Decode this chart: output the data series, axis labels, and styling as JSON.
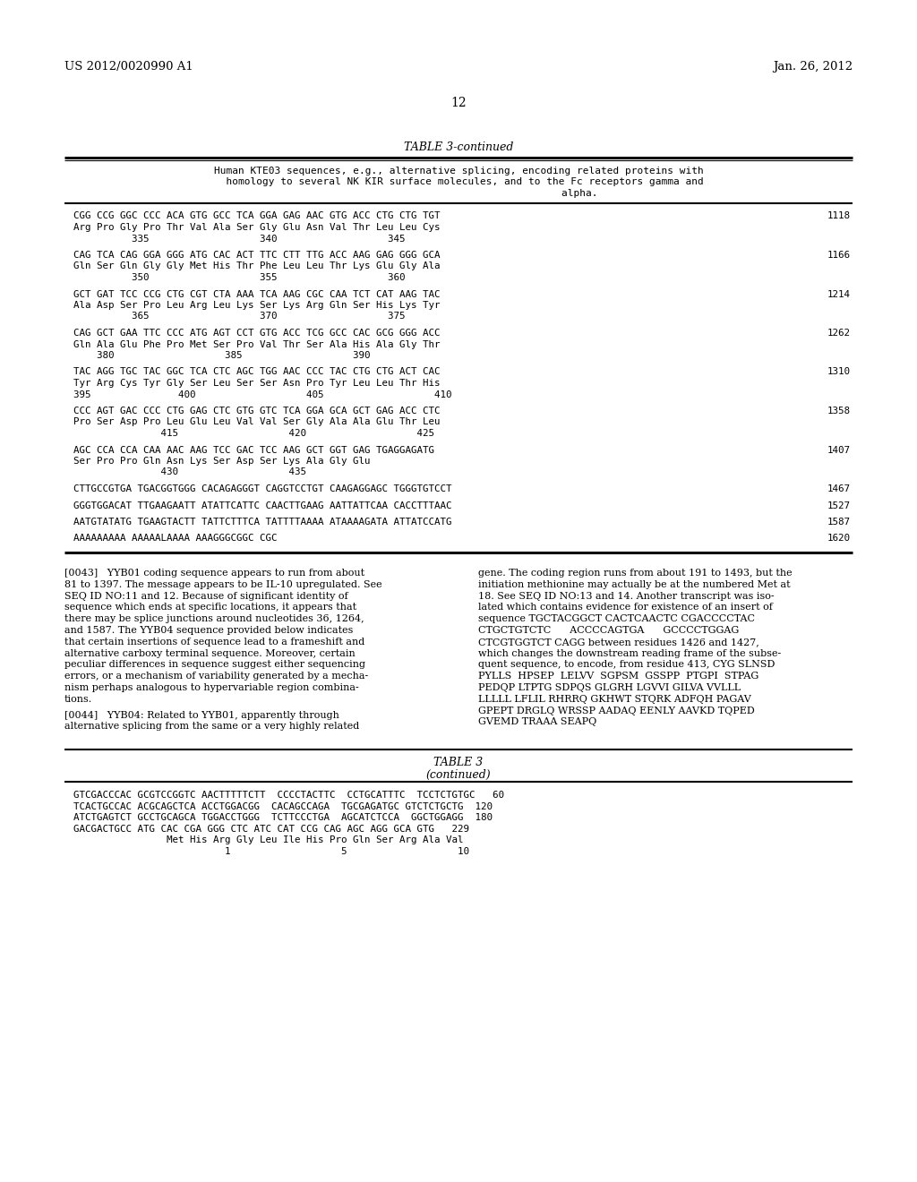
{
  "background_color": "#ffffff",
  "header_left": "US 2012/0020990 A1",
  "header_right": "Jan. 26, 2012",
  "page_number": "12",
  "table_title": "TABLE 3-continued",
  "table_description_lines": [
    "Human KTE03 sequences, e.g., alternative splicing, encoding related proteins with",
    "  homology to several NK KIR surface molecules, and to the Fc receptors gamma and",
    "                                        alpha."
  ],
  "table_rows": [
    {
      "dna": "CGG CCG GGC CCC ACA GTG GCC TCA GGA GAG AAC GTG ACC CTG CTG TGT",
      "aa": "Arg Pro Gly Pro Thr Val Ala Ser Gly Glu Asn Val Thr Leu Leu Cys",
      "nums": "          335                   340                   345",
      "pos": "1118"
    },
    {
      "dna": "CAG TCA CAG GGA GGG ATG CAC ACT TTC CTT TTG ACC AAG GAG GGG GCA",
      "aa": "Gln Ser Gln Gly Gly Met His Thr Phe Leu Leu Thr Lys Glu Gly Ala",
      "nums": "          350                   355                   360",
      "pos": "1166"
    },
    {
      "dna": "GCT GAT TCC CCG CTG CGT CTA AAA TCA AAG CGC CAA TCT CAT AAG TAC",
      "aa": "Ala Asp Ser Pro Leu Arg Leu Lys Ser Lys Arg Gln Ser His Lys Tyr",
      "nums": "          365                   370                   375",
      "pos": "1214"
    },
    {
      "dna": "CAG GCT GAA TTC CCC ATG AGT CCT GTG ACC TCG GCC CAC GCG GGG ACC",
      "aa": "Gln Ala Glu Phe Pro Met Ser Pro Val Thr Ser Ala His Ala Gly Thr",
      "nums": "    380                   385                   390",
      "pos": "1262"
    },
    {
      "dna": "TAC AGG TGC TAC GGC TCA CTC AGC TGG AAC CCC TAC CTG CTG ACT CAC",
      "aa": "Tyr Arg Cys Tyr Gly Ser Leu Ser Ser Asn Pro Tyr Leu Leu Thr His",
      "nums": "395               400                   405                   410",
      "pos": "1310"
    },
    {
      "dna": "CCC AGT GAC CCC CTG GAG CTC GTG GTC TCA GGA GCA GCT GAG ACC CTC",
      "aa": "Pro Ser Asp Pro Leu Glu Leu Val Val Ser Gly Ala Ala Glu Thr Leu",
      "nums": "               415                   420                   425",
      "pos": "1358"
    },
    {
      "dna": "AGC CCA CCA CAA AAC AAG TCC GAC TCC AAG GCT GGT GAG TGAGGAGATG",
      "aa": "Ser Pro Pro Gln Asn Lys Ser Asp Ser Lys Ala Gly Glu",
      "nums": "               430                   435",
      "pos": "1407"
    },
    {
      "dna": "CTTGCCGTGA TGACGGTGGG CACAGAGGGT CAGGTCCTGT CAAGAGGAGC TGGGTGTCCT",
      "aa": "",
      "nums": "",
      "pos": "1467"
    },
    {
      "dna": "GGGTGGACAT TTGAAGAATT ATATTCATTC CAACTTGAAG AATTATTCAA CACCTTTAAC",
      "aa": "",
      "nums": "",
      "pos": "1527"
    },
    {
      "dna": "AATGTATATG TGAAGTACTT TATTCTTTCA TATTTTAAAA ATAAAAGATA ATTATCCATG",
      "aa": "",
      "nums": "",
      "pos": "1587"
    },
    {
      "dna": "AAAAAAAAA AAAAALAAAA AAAGGGCGGC CGC",
      "aa": "",
      "nums": "",
      "pos": "1620"
    }
  ],
  "paragraph_0043_left_lines": [
    "[0043]   YYB01 coding sequence appears to run from about",
    "81 to 1397. The message appears to be IL-10 upregulated. See",
    "SEQ ID NO:11 and 12. Because of significant identity of",
    "sequence which ends at specific locations, it appears that",
    "there may be splice junctions around nucleotides 36, 1264,",
    "and 1587. The YYB04 sequence provided below indicates",
    "that certain insertions of sequence lead to a frameshift and",
    "alternative carboxy terminal sequence. Moreover, certain",
    "peculiar differences in sequence suggest either sequencing",
    "errors, or a mechanism of variability generated by a mecha-",
    "nism perhaps analogous to hypervariable region combina-",
    "tions."
  ],
  "paragraph_0044_left_lines": [
    "[0044]   YYB04: Related to YYB01, apparently through",
    "alternative splicing from the same or a very highly related"
  ],
  "paragraph_0043_right_lines": [
    "gene. The coding region runs from about 191 to 1493, but the",
    "initiation methionine may actually be at the numbered Met at",
    "18. See SEQ ID NO:13 and 14. Another transcript was iso-",
    "lated which contains evidence for existence of an insert of",
    "sequence TGCTACGGCT CACTCAACTC CGACCCCTAC",
    "CTGCTGTCTC      ACCCCAGTGA      GCCCCTGGAG",
    "CTCGTGGTCT CAGG between residues 1426 and 1427,",
    "which changes the downstream reading frame of the subse-",
    "quent sequence, to encode, from residue 413, CYG SLNSD",
    "PYLLS  HPSEP  LELVV  SGPSM  GSSPP  PTGPI  STPAG",
    "PEDQP LTPTG SDPQS GLGRH LGVVI GILVA VVLLL",
    "LLLLL LFLIL RHRRQ GKHWT STQRK ADFQH PAGAV",
    "GPEPT DRGLQ WRSSP AADAQ EENLY AAVKD TQPED",
    "GVEMD TRAAA SEAPQ"
  ],
  "table3_title": "TABLE 3",
  "table3_subtitle": "(continued)",
  "table3_rows": [
    "GTCGACCCAC GCGTCCGGTC AACTTTTTCTT  CCCCTACTTC  CCTGCATTTC  TCCTCTGTGC   60",
    "TCACTGCCAC ACGCAGCTCA ACCTGGACGG  CACAGCCAGA  TGCGAGATGC GTCTCTGCTG  120",
    "ATCTGAGTCT GCCTGCAGCA TGGACCTGGG  TCTTCCCTGA  AGCATCTCCA  GGCTGGAGG  180",
    "GACGACTGCC ATG CAC CGA GGG CTC ATC CAT CCG CAG AGC AGG GCA GTG   229",
    "                Met His Arg Gly Leu Ile His Pro Gln Ser Arg Ala Val",
    "                          1                   5                   10"
  ]
}
